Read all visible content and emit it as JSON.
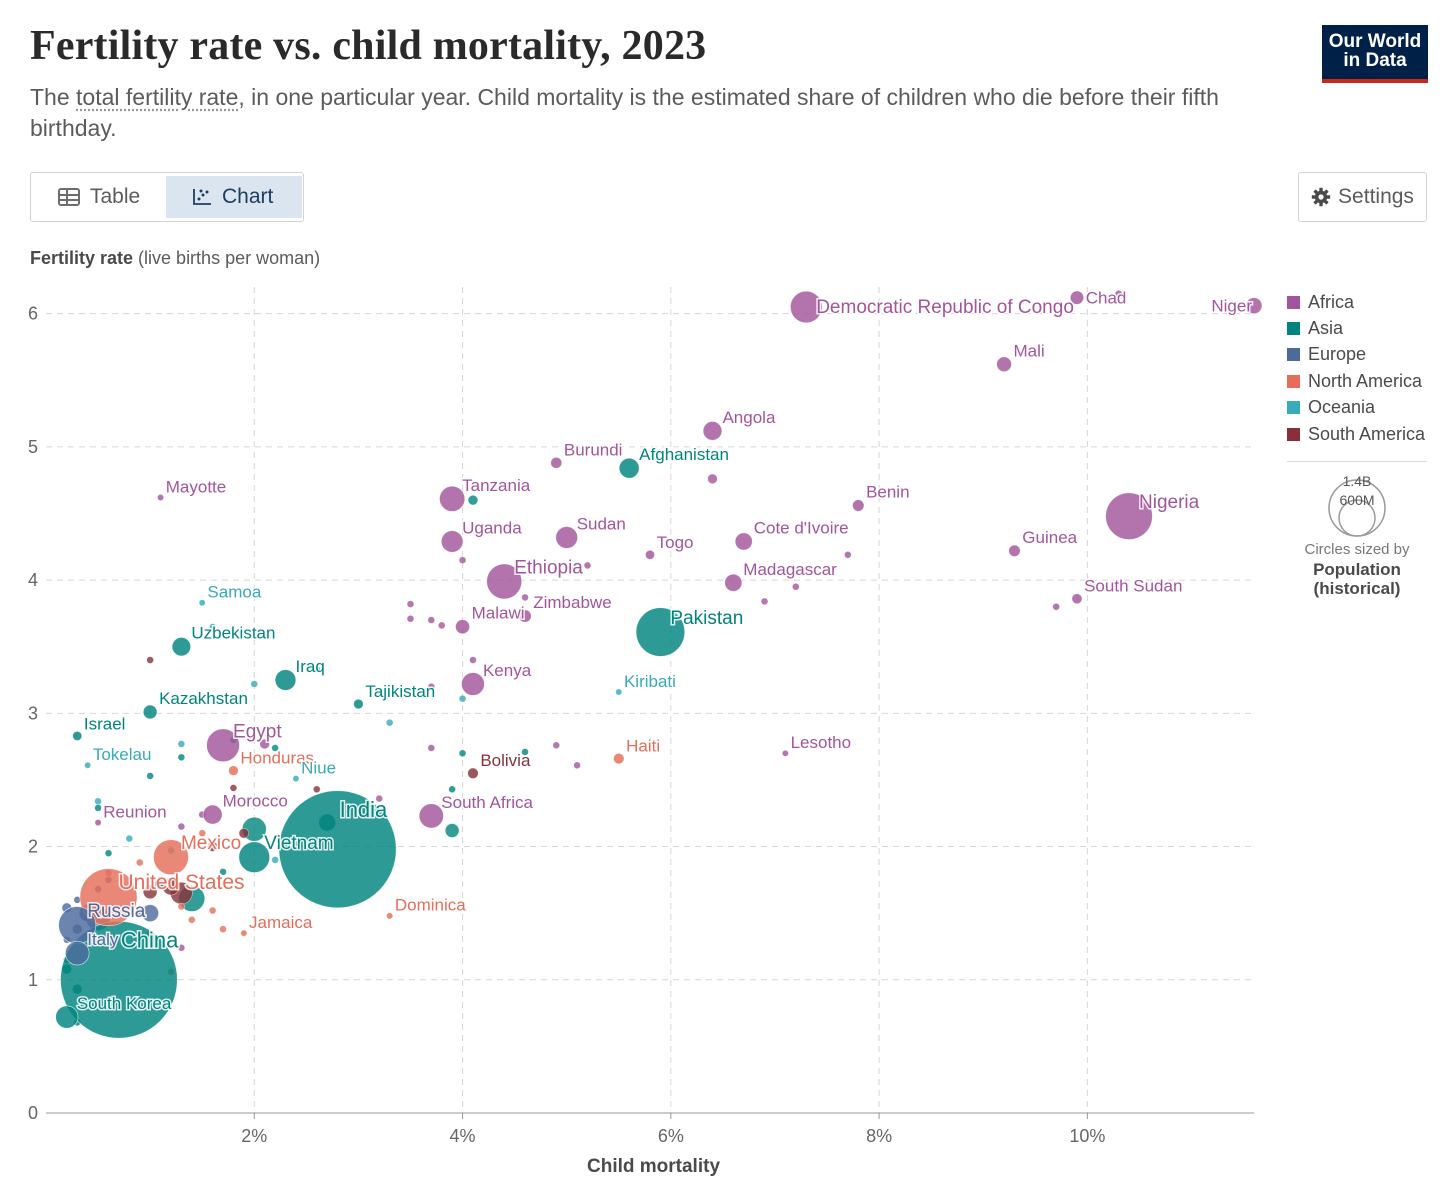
{
  "header": {
    "title": "Fertility rate vs. child mortality, 2023",
    "subtitle_pre": "The ",
    "subtitle_term": "total fertility rate",
    "subtitle_post": ", in one particular year. Child mortality is the estimated share of children who die before their fifth birthday.",
    "logo_line1": "Our World",
    "logo_line2": "in Data"
  },
  "controls": {
    "table_label": "Table",
    "chart_label": "Chart",
    "settings_label": "Settings",
    "active_tab": "Chart"
  },
  "legend": {
    "items": [
      {
        "name": "Africa",
        "color": "#a2559c"
      },
      {
        "name": "Asia",
        "color": "#00847e"
      },
      {
        "name": "Europe",
        "color": "#4c6a9c"
      },
      {
        "name": "North America",
        "color": "#e56e5a"
      },
      {
        "name": "Oceania",
        "color": "#38aaba"
      },
      {
        "name": "South America",
        "color": "#883039"
      }
    ],
    "size_big": "1.4B",
    "size_small": "600M",
    "size_note_line1": "Circles sized by",
    "size_note_line2": "Population",
    "size_note_line3": "(historical)"
  },
  "chart_data": {
    "type": "scatter",
    "title": "Fertility rate vs. child mortality, 2023",
    "ylabel_bold": "Fertility rate",
    "ylabel_rest": " (live births per woman)",
    "xlabel": "Child mortality",
    "x_unit": "%",
    "xlim": [
      0,
      11.6
    ],
    "ylim": [
      0,
      6.2
    ],
    "x_ticks": [
      {
        "value": 2,
        "label": "2%"
      },
      {
        "value": 4,
        "label": "4%"
      },
      {
        "value": 6,
        "label": "6%"
      },
      {
        "value": 8,
        "label": "8%"
      },
      {
        "value": 10,
        "label": "10%"
      }
    ],
    "y_ticks": [
      {
        "value": 0,
        "label": "0"
      },
      {
        "value": 1,
        "label": "1"
      },
      {
        "value": 2,
        "label": "2"
      },
      {
        "value": 3,
        "label": "3"
      },
      {
        "value": 4,
        "label": "4"
      },
      {
        "value": 5,
        "label": "5"
      },
      {
        "value": 6,
        "label": "6"
      }
    ],
    "grid": true,
    "legend_position": "right",
    "size_variable": "Population (historical)",
    "labeled_points": [
      {
        "label": "Democratic Republic of Congo",
        "region": "Africa",
        "x": 7.3,
        "y": 6.05,
        "pop": 105
      },
      {
        "label": "Chad",
        "region": "Africa",
        "x": 9.9,
        "y": 6.12,
        "pop": 19
      },
      {
        "label": "Niger",
        "region": "Africa",
        "x": 11.6,
        "y": 6.06,
        "pop": 27
      },
      {
        "label": "Mali",
        "region": "Africa",
        "x": 9.2,
        "y": 5.62,
        "pop": 23
      },
      {
        "label": "Angola",
        "region": "Africa",
        "x": 6.4,
        "y": 5.12,
        "pop": 37
      },
      {
        "label": "Burundi",
        "region": "Africa",
        "x": 4.9,
        "y": 4.88,
        "pop": 13
      },
      {
        "label": "Afghanistan",
        "region": "Asia",
        "x": 5.6,
        "y": 4.84,
        "pop": 42
      },
      {
        "label": "Mayotte",
        "region": "Africa",
        "x": 1.1,
        "y": 4.62,
        "pop": 0.3
      },
      {
        "label": "Tanzania",
        "region": "Africa",
        "x": 3.9,
        "y": 4.61,
        "pop": 67
      },
      {
        "label": "Benin",
        "region": "Africa",
        "x": 7.8,
        "y": 4.56,
        "pop": 14
      },
      {
        "label": "Nigeria",
        "region": "Africa",
        "x": 10.4,
        "y": 4.48,
        "pop": 228
      },
      {
        "label": "Uganda",
        "region": "Africa",
        "x": 3.9,
        "y": 4.29,
        "pop": 49
      },
      {
        "label": "Sudan",
        "region": "Africa",
        "x": 5.0,
        "y": 4.32,
        "pop": 50
      },
      {
        "label": "Cote d'Ivoire",
        "region": "Africa",
        "x": 6.7,
        "y": 4.29,
        "pop": 31
      },
      {
        "label": "Togo",
        "region": "Africa",
        "x": 5.8,
        "y": 4.19,
        "pop": 9
      },
      {
        "label": "Guinea",
        "region": "Africa",
        "x": 9.3,
        "y": 4.22,
        "pop": 14
      },
      {
        "label": "Ethiopia",
        "region": "Africa",
        "x": 4.4,
        "y": 3.99,
        "pop": 128
      },
      {
        "label": "Madagascar",
        "region": "Africa",
        "x": 6.6,
        "y": 3.98,
        "pop": 31
      },
      {
        "label": "South Sudan",
        "region": "Africa",
        "x": 9.9,
        "y": 3.86,
        "pop": 11
      },
      {
        "label": "Samoa",
        "region": "Oceania",
        "x": 1.5,
        "y": 3.83,
        "pop": 0.2
      },
      {
        "label": "Zimbabwe",
        "region": "Africa",
        "x": 4.6,
        "y": 3.73,
        "pop": 16
      },
      {
        "label": "Malawi",
        "region": "Africa",
        "x": 4.0,
        "y": 3.65,
        "pop": 21
      },
      {
        "label": "Pakistan",
        "region": "Asia",
        "x": 5.9,
        "y": 3.61,
        "pop": 247
      },
      {
        "label": "Uzbekistan",
        "region": "Asia",
        "x": 1.3,
        "y": 3.5,
        "pop": 36
      },
      {
        "label": "Iraq",
        "region": "Asia",
        "x": 2.3,
        "y": 3.25,
        "pop": 45
      },
      {
        "label": "Kenya",
        "region": "Africa",
        "x": 4.1,
        "y": 3.22,
        "pop": 55
      },
      {
        "label": "Kiribati",
        "region": "Oceania",
        "x": 5.5,
        "y": 3.16,
        "pop": 0.1
      },
      {
        "label": "Tajikistan",
        "region": "Asia",
        "x": 3.0,
        "y": 3.07,
        "pop": 10
      },
      {
        "label": "Kazakhstan",
        "region": "Asia",
        "x": 1.0,
        "y": 3.01,
        "pop": 20
      },
      {
        "label": "Israel",
        "region": "Asia",
        "x": 0.3,
        "y": 2.83,
        "pop": 9
      },
      {
        "label": "Egypt",
        "region": "Africa",
        "x": 1.7,
        "y": 2.76,
        "pop": 113
      },
      {
        "label": "Lesotho",
        "region": "Africa",
        "x": 7.1,
        "y": 2.7,
        "pop": 2.3
      },
      {
        "label": "Haiti",
        "region": "North America",
        "x": 5.5,
        "y": 2.66,
        "pop": 12
      },
      {
        "label": "Tokelau",
        "region": "Oceania",
        "x": 0.4,
        "y": 2.61,
        "pop": 0.002
      },
      {
        "label": "Honduras",
        "region": "North America",
        "x": 1.8,
        "y": 2.57,
        "pop": 10
      },
      {
        "label": "Niue",
        "region": "Oceania",
        "x": 2.4,
        "y": 2.51,
        "pop": 0.002
      },
      {
        "label": "Bolivia",
        "region": "South America",
        "x": 4.1,
        "y": 2.55,
        "pop": 12
      },
      {
        "label": "Morocco",
        "region": "Africa",
        "x": 1.6,
        "y": 2.24,
        "pop": 38
      },
      {
        "label": "South Africa",
        "region": "Africa",
        "x": 3.7,
        "y": 2.23,
        "pop": 62
      },
      {
        "label": "Reunion",
        "region": "Africa",
        "x": 0.5,
        "y": 2.18,
        "pop": 0.9
      },
      {
        "label": "India",
        "region": "Asia",
        "x": 2.8,
        "y": 1.98,
        "pop": 1430
      },
      {
        "label": "Mexico",
        "region": "North America",
        "x": 1.2,
        "y": 1.92,
        "pop": 128
      },
      {
        "label": "Vietnam",
        "region": "Asia",
        "x": 2.0,
        "y": 1.92,
        "pop": 99
      },
      {
        "label": "United States",
        "region": "North America",
        "x": 0.6,
        "y": 1.62,
        "pop": 340
      },
      {
        "label": "Dominica",
        "region": "North America",
        "x": 3.3,
        "y": 1.48,
        "pop": 0.07
      },
      {
        "label": "Russia",
        "region": "Europe",
        "x": 0.3,
        "y": 1.41,
        "pop": 145
      },
      {
        "label": "Jamaica",
        "region": "North America",
        "x": 1.9,
        "y": 1.35,
        "pop": 2.8
      },
      {
        "label": "Italy",
        "region": "Europe",
        "x": 0.3,
        "y": 1.2,
        "pop": 59
      },
      {
        "label": "China",
        "region": "Asia",
        "x": 0.7,
        "y": 1.0,
        "pop": 1420
      },
      {
        "label": "South Korea",
        "region": "Asia",
        "x": 0.2,
        "y": 0.72,
        "pop": 52
      }
    ],
    "other_points": [
      {
        "region": "Africa",
        "x": 10.3,
        "y": 6.15,
        "pop": 5
      },
      {
        "region": "Africa",
        "x": 6.4,
        "y": 4.76,
        "pop": 10
      },
      {
        "region": "Africa",
        "x": 4.0,
        "y": 4.15,
        "pop": 5
      },
      {
        "region": "Africa",
        "x": 5.2,
        "y": 4.11,
        "pop": 5
      },
      {
        "region": "Africa",
        "x": 7.7,
        "y": 4.19,
        "pop": 5
      },
      {
        "region": "Africa",
        "x": 7.2,
        "y": 3.95,
        "pop": 5
      },
      {
        "region": "Africa",
        "x": 6.9,
        "y": 3.84,
        "pop": 5
      },
      {
        "region": "Africa",
        "x": 9.7,
        "y": 3.8,
        "pop": 5
      },
      {
        "region": "Africa",
        "x": 3.5,
        "y": 3.82,
        "pop": 5
      },
      {
        "region": "Africa",
        "x": 3.5,
        "y": 3.71,
        "pop": 5
      },
      {
        "region": "Africa",
        "x": 3.7,
        "y": 3.7,
        "pop": 5
      },
      {
        "region": "Africa",
        "x": 3.8,
        "y": 3.66,
        "pop": 5
      },
      {
        "region": "Africa",
        "x": 4.6,
        "y": 3.87,
        "pop": 5
      },
      {
        "region": "Africa",
        "x": 4.1,
        "y": 3.4,
        "pop": 5
      },
      {
        "region": "Africa",
        "x": 3.7,
        "y": 3.2,
        "pop": 5
      },
      {
        "region": "Africa",
        "x": 3.7,
        "y": 2.74,
        "pop": 5
      },
      {
        "region": "Africa",
        "x": 4.9,
        "y": 2.76,
        "pop": 5
      },
      {
        "region": "Africa",
        "x": 5.1,
        "y": 2.61,
        "pop": 5
      },
      {
        "region": "Africa",
        "x": 2.1,
        "y": 2.77,
        "pop": 10
      },
      {
        "region": "Africa",
        "x": 3.2,
        "y": 2.36,
        "pop": 5
      },
      {
        "region": "Africa",
        "x": 1.3,
        "y": 2.15,
        "pop": 5
      },
      {
        "region": "Africa",
        "x": 1.5,
        "y": 2.24,
        "pop": 5
      },
      {
        "region": "Africa",
        "x": 1.3,
        "y": 1.24,
        "pop": 5
      },
      {
        "region": "Asia",
        "x": 4.1,
        "y": 4.6,
        "pop": 10
      },
      {
        "region": "Asia",
        "x": 1.8,
        "y": 2.8,
        "pop": 5
      },
      {
        "region": "Asia",
        "x": 2.6,
        "y": 3.33,
        "pop": 5
      },
      {
        "region": "Asia",
        "x": 4.0,
        "y": 2.7,
        "pop": 5
      },
      {
        "region": "Asia",
        "x": 4.6,
        "y": 2.71,
        "pop": 5
      },
      {
        "region": "Asia",
        "x": 2.7,
        "y": 2.18,
        "pop": 30
      },
      {
        "region": "Asia",
        "x": 3.9,
        "y": 2.12,
        "pop": 20
      },
      {
        "region": "Asia",
        "x": 2.0,
        "y": 2.13,
        "pop": 60
      },
      {
        "region": "Asia",
        "x": 3.9,
        "y": 2.43,
        "pop": 5
      },
      {
        "region": "Asia",
        "x": 1.7,
        "y": 1.81,
        "pop": 5
      },
      {
        "region": "Asia",
        "x": 1.1,
        "y": 1.72,
        "pop": 15
      },
      {
        "region": "Asia",
        "x": 1.4,
        "y": 1.61,
        "pop": 70
      },
      {
        "region": "Asia",
        "x": 0.2,
        "y": 1.08,
        "pop": 10
      },
      {
        "region": "Asia",
        "x": 0.3,
        "y": 0.93,
        "pop": 10
      },
      {
        "region": "Asia",
        "x": 0.3,
        "y": 0.68,
        "pop": 5
      },
      {
        "region": "Asia",
        "x": 2.2,
        "y": 2.74,
        "pop": 5
      },
      {
        "region": "Asia",
        "x": 1.3,
        "y": 2.67,
        "pop": 5
      },
      {
        "region": "Asia",
        "x": 0.6,
        "y": 1.95,
        "pop": 5
      },
      {
        "region": "Asia",
        "x": 1.0,
        "y": 2.53,
        "pop": 5
      },
      {
        "region": "Asia",
        "x": 0.5,
        "y": 2.29,
        "pop": 5
      },
      {
        "region": "Europe",
        "x": 0.2,
        "y": 1.54,
        "pop": 10
      },
      {
        "region": "Europe",
        "x": 0.3,
        "y": 1.6,
        "pop": 5
      },
      {
        "region": "Europe",
        "x": 0.4,
        "y": 1.5,
        "pop": 30
      },
      {
        "region": "Europe",
        "x": 0.3,
        "y": 1.38,
        "pop": 10
      },
      {
        "region": "Europe",
        "x": 0.5,
        "y": 1.46,
        "pop": 60
      },
      {
        "region": "Europe",
        "x": 0.6,
        "y": 1.75,
        "pop": 5
      },
      {
        "region": "Europe",
        "x": 0.2,
        "y": 1.3,
        "pop": 5
      },
      {
        "region": "Europe",
        "x": 0.5,
        "y": 1.68,
        "pop": 5
      },
      {
        "region": "Europe",
        "x": 1.0,
        "y": 1.5,
        "pop": 30
      },
      {
        "region": "Europe",
        "x": 0.2,
        "y": 1.15,
        "pop": 5
      },
      {
        "region": "North America",
        "x": 1.1,
        "y": 1.75,
        "pop": 5
      },
      {
        "region": "North America",
        "x": 1.6,
        "y": 1.52,
        "pop": 5
      },
      {
        "region": "North America",
        "x": 1.3,
        "y": 1.55,
        "pop": 5
      },
      {
        "region": "North America",
        "x": 1.7,
        "y": 1.38,
        "pop": 5
      },
      {
        "region": "North America",
        "x": 1.4,
        "y": 1.45,
        "pop": 5
      },
      {
        "region": "North America",
        "x": 1.2,
        "y": 1.06,
        "pop": 5
      },
      {
        "region": "North America",
        "x": 0.9,
        "y": 1.88,
        "pop": 5
      },
      {
        "region": "North America",
        "x": 1.5,
        "y": 2.1,
        "pop": 5
      },
      {
        "region": "North America",
        "x": 0.6,
        "y": 1.8,
        "pop": 5
      },
      {
        "region": "North America",
        "x": 1.0,
        "y": 1.35,
        "pop": 5
      },
      {
        "region": "Oceania",
        "x": 2.0,
        "y": 3.22,
        "pop": 5
      },
      {
        "region": "Oceania",
        "x": 1.6,
        "y": 3.65,
        "pop": 0.5
      },
      {
        "region": "Oceania",
        "x": 3.3,
        "y": 2.93,
        "pop": 5
      },
      {
        "region": "Oceania",
        "x": 4.0,
        "y": 3.11,
        "pop": 5
      },
      {
        "region": "Oceania",
        "x": 1.3,
        "y": 2.77,
        "pop": 5
      },
      {
        "region": "Oceania",
        "x": 0.5,
        "y": 2.34,
        "pop": 5
      },
      {
        "region": "Oceania",
        "x": 1.2,
        "y": 1.97,
        "pop": 5
      },
      {
        "region": "Oceania",
        "x": 2.2,
        "y": 1.9,
        "pop": 5
      },
      {
        "region": "Oceania",
        "x": 0.8,
        "y": 2.06,
        "pop": 5
      },
      {
        "region": "South America",
        "x": 1.0,
        "y": 3.4,
        "pop": 5
      },
      {
        "region": "South America",
        "x": 1.9,
        "y": 2.1,
        "pop": 10
      },
      {
        "region": "South America",
        "x": 2.6,
        "y": 2.43,
        "pop": 5
      },
      {
        "region": "South America",
        "x": 1.3,
        "y": 1.65,
        "pop": 50
      },
      {
        "region": "South America",
        "x": 1.0,
        "y": 1.66,
        "pop": 20
      },
      {
        "region": "South America",
        "x": 0.9,
        "y": 1.5,
        "pop": 10
      },
      {
        "region": "South America",
        "x": 1.6,
        "y": 2.0,
        "pop": 10
      },
      {
        "region": "South America",
        "x": 1.2,
        "y": 1.7,
        "pop": 30
      },
      {
        "region": "South America",
        "x": 1.8,
        "y": 2.44,
        "pop": 5
      }
    ]
  }
}
